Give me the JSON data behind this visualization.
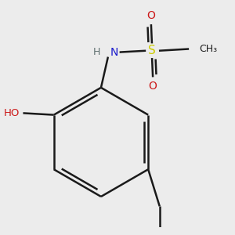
{
  "bg_color": "#ececec",
  "atom_colors": {
    "C": "#1a1a1a",
    "N": "#1a1acc",
    "O": "#cc1a1a",
    "S": "#cccc00",
    "H": "#607070"
  },
  "bond_color": "#1a1a1a",
  "bond_width": 1.8,
  "figsize": [
    3.0,
    3.0
  ],
  "dpi": 100
}
